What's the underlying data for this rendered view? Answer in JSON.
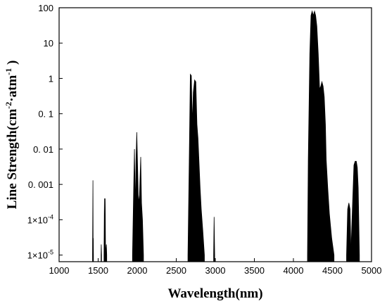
{
  "chart_data": {
    "type": "area",
    "title": "",
    "xlabel": "Wavelength(nm)",
    "ylabel": {
      "prefix": "Line Strength(cm",
      "sup1": "-2",
      "middle": "·atm",
      "sup2": "-1",
      "suffix": " )"
    },
    "xlim": [
      1000,
      5000
    ],
    "ylim": [
      6.5e-06,
      100
    ],
    "yscale": "log",
    "grid": false,
    "x_ticks": [
      {
        "value": 1000,
        "label": "1000"
      },
      {
        "value": 1500,
        "label": "1500"
      },
      {
        "value": 2000,
        "label": "2000"
      },
      {
        "value": 2500,
        "label": "2500"
      },
      {
        "value": 3000,
        "label": "3000"
      },
      {
        "value": 3500,
        "label": "3500"
      },
      {
        "value": 4000,
        "label": "4000"
      },
      {
        "value": 4500,
        "label": "4500"
      },
      {
        "value": 5000,
        "label": "5000"
      }
    ],
    "y_ticks": [
      {
        "value": 100,
        "label": "100"
      },
      {
        "value": 10,
        "label": "10"
      },
      {
        "value": 1,
        "label": "1"
      },
      {
        "value": 0.1,
        "label": "0. 1"
      },
      {
        "value": 0.01,
        "label": "0. 01"
      },
      {
        "value": 0.001,
        "label": "0. 001"
      },
      {
        "value": 0.0001,
        "label": "1×10",
        "exp": "-4"
      },
      {
        "value": 1e-05,
        "label": "1×10",
        "exp": "-5"
      }
    ],
    "series": [
      {
        "color": "#000000",
        "bands": [
          {
            "lo": 1428,
            "hi": 1440,
            "points": [
              [
                1428,
                1e-05
              ],
              [
                1433,
                0.0013
              ],
              [
                1436,
                1e-05
              ],
              [
                1438,
                3e-05
              ],
              [
                1440,
                1e-05
              ]
            ]
          },
          {
            "lo": 1535,
            "hi": 1545,
            "points": [
              [
                1537,
                1e-05
              ],
              [
                1540,
                2e-05
              ],
              [
                1543,
                1e-05
              ]
            ]
          },
          {
            "lo": 1570,
            "hi": 1620,
            "points": [
              [
                1575,
                1e-05
              ],
              [
                1580,
                0.0004
              ],
              [
                1585,
                1e-05
              ],
              [
                1590,
                0.0004
              ],
              [
                1595,
                1e-05
              ],
              [
                1605,
                2e-05
              ],
              [
                1610,
                1e-05
              ]
            ]
          },
          {
            "lo": 1930,
            "hi": 2085,
            "points": [
              [
                1940,
                1e-05
              ],
              [
                1955,
                0.0008
              ],
              [
                1965,
                0.01
              ],
              [
                1975,
                0.0002
              ],
              [
                1985,
                0.005
              ],
              [
                1995,
                0.03
              ],
              [
                2005,
                0.003
              ],
              [
                2015,
                0.0003
              ],
              [
                2030,
                0.0005
              ],
              [
                2045,
                0.006
              ],
              [
                2055,
                0.0003
              ],
              [
                2068,
                0.0001
              ],
              [
                2080,
                1e-05
              ]
            ]
          },
          {
            "lo": 2640,
            "hi": 2900,
            "points": [
              [
                2650,
                1e-05
              ],
              [
                2665,
                0.003
              ],
              [
                2680,
                1.3
              ],
              [
                2693,
                1.2
              ],
              [
                2705,
                0.05
              ],
              [
                2718,
                0.4
              ],
              [
                2735,
                0.9
              ],
              [
                2750,
                0.8
              ],
              [
                2765,
                0.05
              ],
              [
                2778,
                0.02
              ],
              [
                2790,
                0.005
              ],
              [
                2805,
                0.0008
              ],
              [
                2820,
                0.0002
              ],
              [
                2840,
                5e-05
              ],
              [
                2860,
                1e-05
              ]
            ]
          },
          {
            "lo": 2975,
            "hi": 2995,
            "points": [
              [
                2978,
                1e-05
              ],
              [
                2985,
                0.00012
              ],
              [
                2992,
                1e-05
              ]
            ]
          },
          {
            "lo": 4180,
            "hi": 4420,
            "points": [
              [
                4180,
                1e-05
              ],
              [
                4190,
                0.005
              ],
              [
                4210,
                5
              ],
              [
                4225,
                60
              ],
              [
                4240,
                80
              ],
              [
                4255,
                60
              ],
              [
                4270,
                80
              ],
              [
                4285,
                60
              ],
              [
                4300,
                30
              ],
              [
                4318,
                5
              ],
              [
                4335,
                0.5
              ],
              [
                4350,
                0.6
              ],
              [
                4365,
                0.8
              ],
              [
                4380,
                0.6
              ],
              [
                4395,
                0.3
              ],
              [
                4410,
                0.05
              ],
              [
                4420,
                0.005
              ]
            ]
          },
          {
            "lo": 4420,
            "hi": 4560,
            "points": [
              [
                4420,
                0.005
              ],
              [
                4440,
                0.0008
              ],
              [
                4460,
                0.00015
              ],
              [
                4490,
                3e-05
              ],
              [
                4520,
                1e-05
              ]
            ]
          },
          {
            "lo": 4680,
            "hi": 4740,
            "points": [
              [
                4680,
                1e-05
              ],
              [
                4695,
                0.0002
              ],
              [
                4710,
                0.0003
              ],
              [
                4725,
                0.0002
              ],
              [
                4738,
                1e-05
              ]
            ]
          },
          {
            "lo": 4735,
            "hi": 4850,
            "points": [
              [
                4735,
                1e-05
              ],
              [
                4755,
                0.0002
              ],
              [
                4775,
                0.0035
              ],
              [
                4790,
                0.0045
              ],
              [
                4805,
                0.0045
              ],
              [
                4818,
                0.003
              ],
              [
                4830,
                0.0008
              ],
              [
                4845,
                1e-05
              ]
            ]
          }
        ]
      }
    ]
  }
}
